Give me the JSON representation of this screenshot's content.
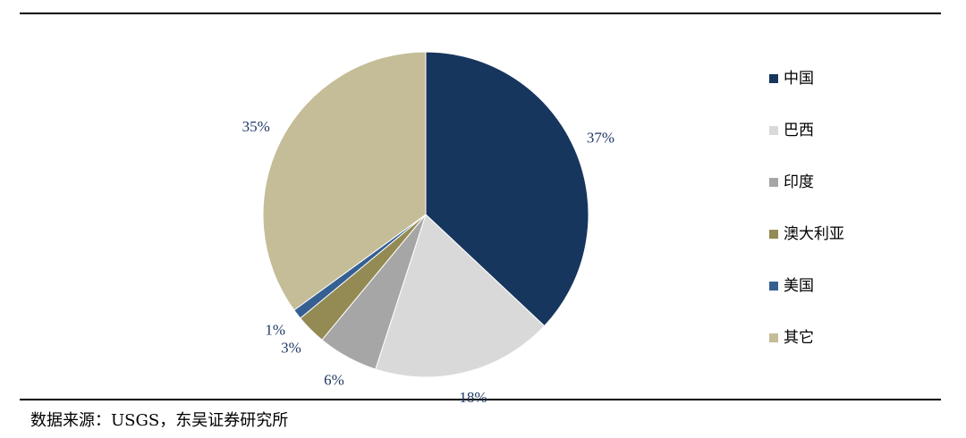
{
  "chart_data": {
    "type": "pie",
    "categories": [
      "中国",
      "巴西",
      "印度",
      "澳大利亚",
      "美国",
      "其它"
    ],
    "values": [
      37,
      18,
      6,
      3,
      1,
      35
    ],
    "value_labels": [
      "37%",
      "18%",
      "6%",
      "3%",
      "1%",
      "35%"
    ],
    "colors": [
      "#17365d",
      "#d9d9d9",
      "#a6a6a6",
      "#948a54",
      "#366092",
      "#c4bd97"
    ],
    "legend": "right",
    "source": "数据来源：USGS，东吴证券研究所"
  }
}
